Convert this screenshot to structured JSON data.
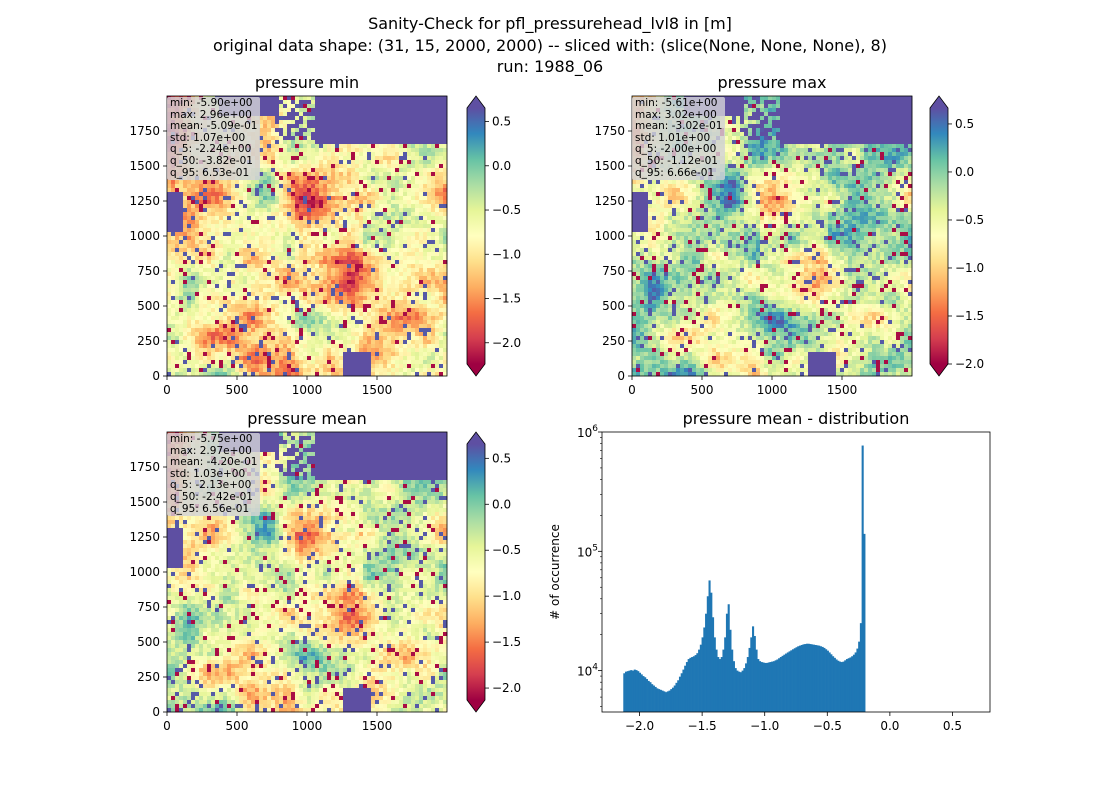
{
  "suptitle": {
    "line1": "Sanity-Check for pfl_pressurehead_lvl8 in [m]",
    "line2": "original data shape: (31, 15, 2000, 2000) -- sliced with: (slice(None, None, None), 8)",
    "line3": "run: 1988_06"
  },
  "colors": {
    "ocean": "#5e4fa2",
    "land_map": [
      "#9e0142",
      "#d53e4f",
      "#f46d43",
      "#fdae61",
      "#fee08b",
      "#ffffbf",
      "#e6f598",
      "#abdda4",
      "#66c2a5",
      "#3288bd",
      "#5e4fa2"
    ],
    "histogram_bar": "#1f77b4"
  },
  "panels": [
    {
      "title": "pressure min",
      "stats": [
        "min: -5.90e+00",
        "max: 2.96e+00",
        "mean: -5.09e-01",
        "std: 1.07e+00",
        "q_5: -2.24e+00",
        "q_50: -3.82e-01",
        "q_95: 6.53e-01"
      ],
      "xticks": [
        "0",
        "500",
        "1000",
        "1500"
      ],
      "yticks": [
        "0",
        "250",
        "500",
        "750",
        "1000",
        "1250",
        "1500",
        "1750"
      ],
      "colorbar": {
        "vmin": -2.24,
        "vmax": 0.653,
        "extend": "both",
        "ticks": [
          "−2.0",
          "−1.5",
          "−1.0",
          "−0.5",
          "0.0",
          "0.5"
        ],
        "tick_values": [
          -2.0,
          -1.5,
          -1.0,
          -0.5,
          0.0,
          0.5
        ]
      }
    },
    {
      "title": "pressure max",
      "stats": [
        "min: -5.61e+00",
        "max: 3.02e+00",
        "mean: -3.02e-01",
        "std: 1.01e+00",
        "q_5: -2.00e+00",
        "q_50: -1.12e-01",
        "q_95: 6.66e-01"
      ],
      "xticks": [
        "0",
        "500",
        "1000",
        "1500"
      ],
      "yticks": [
        "0",
        "250",
        "500",
        "750",
        "1000",
        "1250",
        "1500",
        "1750"
      ],
      "colorbar": {
        "vmin": -2.0,
        "vmax": 0.666,
        "extend": "both",
        "ticks": [
          "−2.0",
          "−1.5",
          "−1.0",
          "−0.5",
          "0.0",
          "0.5"
        ],
        "tick_values": [
          -2.0,
          -1.5,
          -1.0,
          -0.5,
          0.0,
          0.5
        ]
      }
    },
    {
      "title": "pressure mean",
      "stats": [
        "min: -5.75e+00",
        "max: 2.97e+00",
        "mean: -4.20e-01",
        "std: 1.03e+00",
        "q_5: -2.13e+00",
        "q_50: -2.42e-01",
        "q_95: 6.56e-01"
      ],
      "xticks": [
        "0",
        "500",
        "1000",
        "1500"
      ],
      "yticks": [
        "0",
        "250",
        "500",
        "750",
        "1000",
        "1250",
        "1500",
        "1750"
      ],
      "colorbar": {
        "vmin": -2.13,
        "vmax": 0.656,
        "extend": "both",
        "ticks": [
          "−2.0",
          "−1.5",
          "−1.0",
          "−0.5",
          "0.0",
          "0.5"
        ],
        "tick_values": [
          -2.0,
          -1.5,
          -1.0,
          -0.5,
          0.0,
          0.5
        ]
      }
    }
  ],
  "chart_data": [
    {
      "type": "heatmap",
      "title": "pressure min",
      "xlim": [
        0,
        2000
      ],
      "ylim": [
        0,
        2000
      ],
      "colorbar_range": [
        -2.24,
        0.653
      ]
    },
    {
      "type": "heatmap",
      "title": "pressure max",
      "xlim": [
        0,
        2000
      ],
      "ylim": [
        0,
        2000
      ],
      "colorbar_range": [
        -2.0,
        0.666
      ]
    },
    {
      "type": "heatmap",
      "title": "pressure mean",
      "xlim": [
        0,
        2000
      ],
      "ylim": [
        0,
        2000
      ],
      "colorbar_range": [
        -2.13,
        0.656
      ]
    },
    {
      "type": "bar",
      "title": "pressure mean - distribution",
      "xlabel": "",
      "ylabel": "# of occurrence",
      "yscale": "log",
      "xlim": [
        -2.3,
        0.8
      ],
      "ylim": [
        4500,
        1000000
      ],
      "xticks": [
        "−2.0",
        "−1.5",
        "−1.0",
        "−0.5",
        "0.0",
        "0.5"
      ],
      "xtick_values": [
        -2.0,
        -1.5,
        -1.0,
        -0.5,
        0.0,
        0.5
      ],
      "yticks": [
        "10^4",
        "10^5",
        "10^6"
      ],
      "ytick_values": [
        10000,
        100000,
        1000000
      ],
      "bin_start": -2.13,
      "bin_width": 0.0139,
      "counts": [
        9500,
        9800,
        9900,
        10000,
        10100,
        10000,
        10200,
        10100,
        9900,
        9600,
        9300,
        9000,
        8800,
        8500,
        8200,
        8000,
        7700,
        7500,
        7300,
        7100,
        7000,
        6900,
        6800,
        6700,
        6600,
        6700,
        6800,
        7000,
        7200,
        7500,
        7900,
        8300,
        8900,
        9500,
        10200,
        11000,
        11800,
        12500,
        12800,
        13000,
        13200,
        13500,
        14000,
        15000,
        16500,
        19000,
        23000,
        30000,
        42000,
        57000,
        45000,
        28000,
        19000,
        15000,
        13000,
        12500,
        13000,
        15000,
        19000,
        30000,
        36000,
        22000,
        15000,
        12000,
        10500,
        10000,
        9800,
        9700,
        10000,
        10500,
        11500,
        13000,
        15500,
        19000,
        23500,
        19500,
        15000,
        12500,
        12000,
        11800,
        11700,
        11600,
        11600,
        11700,
        11800,
        11900,
        12000,
        12200,
        12400,
        12700,
        13000,
        13300,
        13600,
        13900,
        14200,
        14500,
        14800,
        15100,
        15400,
        15700,
        16000,
        16200,
        16400,
        16600,
        16700,
        16800,
        16800,
        16700,
        16600,
        16500,
        16400,
        16300,
        16200,
        16000,
        15800,
        15500,
        15100,
        14700,
        14200,
        13700,
        13200,
        12800,
        12400,
        12100,
        11900,
        11800,
        11900,
        12200,
        12500,
        12700,
        12900,
        13200,
        13600,
        14200,
        15300,
        17500,
        25000,
        770000,
        140000
      ]
    }
  ]
}
